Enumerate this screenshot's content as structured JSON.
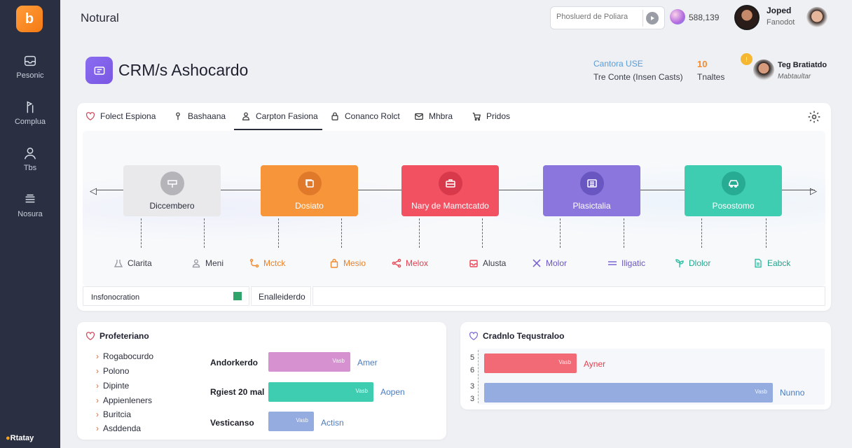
{
  "app": {
    "logo_char": "b",
    "window_title": "Notural",
    "brand_bottom": "Rtatay"
  },
  "sidebar": {
    "items": [
      {
        "label": "Pesonic",
        "icon": "inbox-icon"
      },
      {
        "label": "Complua",
        "icon": "flag-icon"
      },
      {
        "label": "Tbs",
        "icon": "user-icon"
      },
      {
        "label": "Nosura",
        "icon": "stack-icon"
      }
    ]
  },
  "topbar": {
    "search_placeholder": "Phosluerd de Poliara",
    "count": "588,139",
    "user_name": "Joped",
    "user_role": "Fanodot"
  },
  "header": {
    "title": "CRM/s Ashocardo",
    "link_label": "Cantora USE",
    "sub_label": "Tre Conte (Insen Casts)",
    "number": "10",
    "number_label": "Tnaltes",
    "badge": "!",
    "user_name": "Teg Bratiatdo",
    "user_sub": "Mabtaultar"
  },
  "tabs": [
    {
      "label": "Folect Espiona",
      "icon": "heart-icon"
    },
    {
      "label": "Bashaana",
      "icon": "pin-icon"
    },
    {
      "label": "Carpton Fasiona",
      "icon": "person-icon",
      "active": true
    },
    {
      "label": "Conanco Rolct",
      "icon": "lock-icon"
    },
    {
      "label": "Mhbra",
      "icon": "mail-icon"
    },
    {
      "label": "Pridos",
      "icon": "cart-icon"
    }
  ],
  "stages": [
    {
      "label": "Diccembero",
      "color": "#e9e9eb",
      "text_color": "#2a2d3a",
      "icon_bg": "#b5b5b9"
    },
    {
      "label": "Dosiato",
      "color": "#f7953b",
      "text_color": "#ffffff",
      "icon_bg": "#e0792a"
    },
    {
      "label": "Nary de Mamctcatdo",
      "color": "#f25162",
      "text_color": "#ffffff",
      "icon_bg": "#d83a4b"
    },
    {
      "label": "Plasictalia",
      "color": "#8a76dc",
      "text_color": "#ffffff",
      "icon_bg": "#6a56c0"
    },
    {
      "label": "Posostomo",
      "color": "#3ecdb1",
      "text_color": "#ffffff",
      "icon_bg": "#27ab92"
    }
  ],
  "substages": [
    {
      "label": "Clarita",
      "color": "#3a3d48",
      "icon_color": "#9a9da6"
    },
    {
      "label": "Meni",
      "color": "#3a3d48",
      "icon_color": "#9a9da6"
    },
    {
      "label": "Mctck",
      "color": "#e8812b",
      "icon_color": "#f08a2e"
    },
    {
      "label": "Mesio",
      "color": "#e8812b",
      "icon_color": "#f08a2e"
    },
    {
      "label": "Melox",
      "color": "#e2414f",
      "icon_color": "#ea4757"
    },
    {
      "label": "Alusta",
      "color": "#3a3d48",
      "icon_color": "#ea4757"
    },
    {
      "label": "Molor",
      "color": "#6a56c0",
      "icon_color": "#7b66d4"
    },
    {
      "label": "Iligatic",
      "color": "#6a56c0",
      "icon_color": "#7b66d4"
    },
    {
      "label": "Dlolor",
      "color": "#21a58b",
      "icon_color": "#2fc0a3"
    },
    {
      "label": "Eabck",
      "color": "#21a58b",
      "icon_color": "#2fc0a3"
    }
  ],
  "info_row": {
    "left_label": "Insfonocration",
    "mid_label": "Enalleiderdo"
  },
  "left_panel": {
    "title": "Profeteriano",
    "list": [
      "Rogabocurdo",
      "Polono",
      "Dipinte",
      "Appienleners",
      "Buritcia",
      "Asddenda"
    ],
    "bars": [
      {
        "label": "Andorkerdo",
        "value_label": "Vasb",
        "text": "Amer",
        "color": "#d692d0",
        "fraction": 0.585
      },
      {
        "label": "Rgiest 20 mal",
        "value_label": "Vasb",
        "text": "Aopen",
        "color": "#3ecdb1",
        "fraction": 0.75
      },
      {
        "label": "Vesticanso",
        "value_label": "Vasb",
        "text": "Actisn",
        "color": "#94acdf",
        "fraction": 0.325
      }
    ]
  },
  "right_panel": {
    "title": "Cradnlo Tequstraloo",
    "axis_ticks": [
      "5",
      "6",
      "3",
      "3"
    ],
    "bars": [
      {
        "value_label": "Vasb",
        "text": "Ayner",
        "color": "#f26a76",
        "text_color": "#e2414f",
        "fraction": 0.32
      },
      {
        "value_label": "Vasb",
        "text": "Nunno",
        "color": "#94acdf",
        "text_color": "#4a7bbf",
        "fraction": 1.0
      }
    ]
  }
}
